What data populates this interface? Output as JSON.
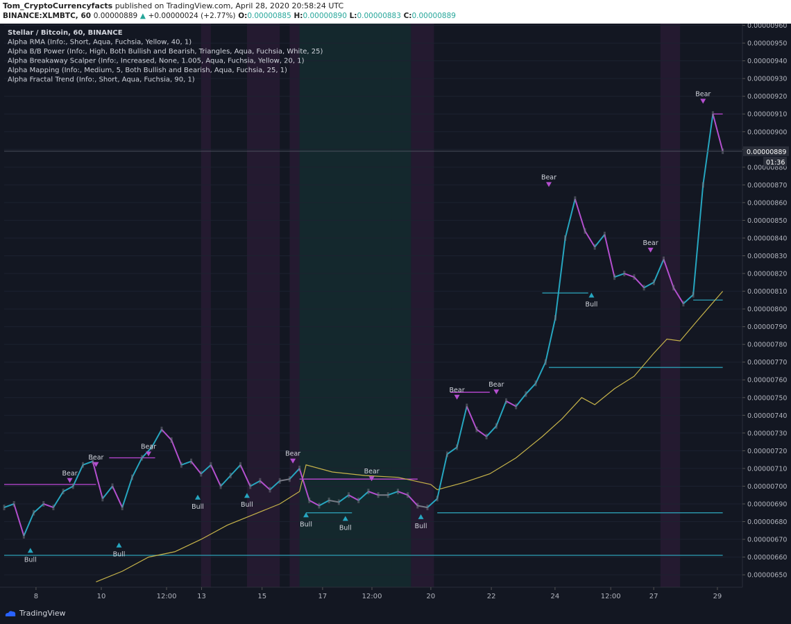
{
  "header": {
    "author": "Tom_CryptoCurrencyfacts",
    "published": " published on TradingView.com, April 28, 2020 20:58:24 UTC",
    "symbol": "BINANCE:XLMBTC, 60",
    "last": "0.00000889",
    "change": "+0.00000024 (+2.77%)",
    "o_label": "O:",
    "o": "0.00000885",
    "h_label": "H:",
    "h": "0.00000890",
    "l_label": "L:",
    "l": "0.00000883",
    "c_label": "C:",
    "c": "0.00000889"
  },
  "legend": [
    "Stellar / Bitcoin, 60, BINANCE",
    "Alpha RMA (Info:, Short, Aqua, Fuchsia, Yellow, 40, 1)",
    "Alpha B/B Power (Info:, High, Both Bullish and Bearish, Triangles, Aqua, Fuchsia, White, 25)",
    "Alpha Breakaway Scalper (Info:, Increased, None, 1.005, Aqua, Fuchsia, Yellow, 20, 1)",
    "Alpha Mapping (Info:, Medium, 5, Both Bullish and Bearish, Aqua, Fuchsia, 25, 1)",
    "Alpha Fractal Trend (Info:, Short, Aqua, Fuchsia, 90, 1)"
  ],
  "footer": {
    "brand": "TradingView"
  },
  "colors": {
    "background": "#131722",
    "teal_band": "#14282d",
    "purple_band": "#241a30",
    "bull": "#26a6c0",
    "bear": "#b44fcf",
    "neutral_candle": "#787b86",
    "trend": "#c7b44a",
    "level_teal": "#2a93a8",
    "level_purple": "#b044c8"
  },
  "chart_data": {
    "type": "line",
    "symbol": "XLMBTC",
    "x_tick_labels": [
      "8",
      "10",
      "12:00",
      "13",
      "15",
      "17",
      "12:00",
      "20",
      "22",
      "24",
      "12:00",
      "27",
      "29"
    ],
    "y_tick_labels": [
      "0.00000960",
      "0.00000950",
      "0.00000940",
      "0.00000930",
      "0.00000920",
      "0.00000910",
      "0.00000900",
      "0.00000890",
      "0.00000880",
      "0.00000870",
      "0.00000860",
      "0.00000850",
      "0.00000840",
      "0.00000830",
      "0.00000820",
      "0.00000810",
      "0.00000800",
      "0.00000790",
      "0.00000780",
      "0.00000770",
      "0.00000760",
      "0.00000750",
      "0.00000740",
      "0.00000730",
      "0.00000720",
      "0.00000710",
      "0.00000700",
      "0.00000690",
      "0.00000680",
      "0.00000670",
      "0.00000660",
      "0.00000650"
    ],
    "ylim": [
      6.43e-06,
      9.61e-06
    ],
    "xlim": [
      0,
      22.5
    ],
    "current_price_label": "0.00000889",
    "current_price": 8.89e-06,
    "countdown": "01:36",
    "price_series": {
      "x": [
        0,
        0.3,
        0.6,
        0.9,
        1.2,
        1.5,
        1.8,
        2.1,
        2.4,
        2.7,
        3.0,
        3.3,
        3.6,
        3.9,
        4.2,
        4.5,
        4.8,
        5.1,
        5.4,
        5.7,
        6.0,
        6.3,
        6.6,
        6.9,
        7.2,
        7.5,
        7.8,
        8.1,
        8.4,
        8.7,
        9.0,
        9.3,
        9.6,
        9.9,
        10.2,
        10.5,
        10.8,
        11.1,
        11.4,
        11.7,
        12.0,
        12.3,
        12.6,
        12.9,
        13.2,
        13.5,
        13.8,
        14.1,
        14.4,
        14.7,
        15.0,
        15.3,
        15.6,
        15.9,
        16.2,
        16.5,
        16.8,
        17.1,
        17.4,
        17.7,
        18.0,
        18.3,
        18.6,
        18.9,
        19.2,
        19.5,
        19.8,
        20.1,
        20.4,
        20.7,
        21.0,
        21.3,
        21.6,
        21.9
      ],
      "y": [
        6.88e-06,
        6.9e-06,
        6.72e-06,
        6.85e-06,
        6.9e-06,
        6.88e-06,
        6.97e-06,
        7e-06,
        7.12e-06,
        7.14e-06,
        6.93e-06,
        7e-06,
        6.88e-06,
        7.05e-06,
        7.16e-06,
        7.22e-06,
        7.32e-06,
        7.26e-06,
        7.12e-06,
        7.14e-06,
        7.07e-06,
        7.12e-06,
        7e-06,
        7.06e-06,
        7.12e-06,
        7e-06,
        7.03e-06,
        6.98e-06,
        7.03e-06,
        7.04e-06,
        7.1e-06,
        6.92e-06,
        6.89e-06,
        6.92e-06,
        6.91e-06,
        6.95e-06,
        6.92e-06,
        6.97e-06,
        6.95e-06,
        6.95e-06,
        6.97e-06,
        6.95e-06,
        6.89e-06,
        6.88e-06,
        6.93e-06,
        7.18e-06,
        7.22e-06,
        7.45e-06,
        7.32e-06,
        7.28e-06,
        7.34e-06,
        7.48e-06,
        7.45e-06,
        7.52e-06,
        7.58e-06,
        7.7e-06,
        7.95e-06,
        8.4e-06,
        8.62e-06,
        8.44e-06,
        8.35e-06,
        8.42e-06,
        8.18e-06,
        8.2e-06,
        8.18e-06,
        8.12e-06,
        8.15e-06,
        8.28e-06,
        8.12e-06,
        8.03e-06,
        8.08e-06,
        8.7e-06,
        9.1e-06,
        8.89e-06
      ]
    },
    "trend_series": {
      "x": [
        2.8,
        3.6,
        4.4,
        5.2,
        6.0,
        6.8,
        7.6,
        8.4,
        9.0,
        9.2,
        10.0,
        11.0,
        12.0,
        13.0,
        13.2,
        14.0,
        14.8,
        15.6,
        16.4,
        17.0,
        17.6,
        18.0,
        18.6,
        19.2,
        19.8,
        20.2,
        20.6,
        21.2,
        21.9
      ],
      "y": [
        6.46e-06,
        6.52e-06,
        6.6e-06,
        6.63e-06,
        6.7e-06,
        6.78e-06,
        6.84e-06,
        6.9e-06,
        6.97e-06,
        7.12e-06,
        7.08e-06,
        7.06e-06,
        7.05e-06,
        7.01e-06,
        6.98e-06,
        7.02e-06,
        7.07e-06,
        7.16e-06,
        7.28e-06,
        7.38e-06,
        7.5e-06,
        7.46e-06,
        7.55e-06,
        7.62e-06,
        7.75e-06,
        7.83e-06,
        7.82e-06,
        7.95e-06,
        8.1e-06
      ]
    },
    "levels": [
      {
        "y": 7.01e-06,
        "x0": 0.0,
        "x1": 2.8,
        "color": "purple"
      },
      {
        "y": 7.16e-06,
        "x0": 3.2,
        "x1": 4.6,
        "color": "purple"
      },
      {
        "y": 6.61e-06,
        "x0": 0.0,
        "x1": 21.9,
        "color": "teal"
      },
      {
        "y": 6.85e-06,
        "x0": 9.2,
        "x1": 10.6,
        "color": "teal"
      },
      {
        "y": 7.04e-06,
        "x0": 9.0,
        "x1": 12.6,
        "color": "purple"
      },
      {
        "y": 7.53e-06,
        "x0": 13.6,
        "x1": 14.8,
        "color": "purple"
      },
      {
        "y": 6.85e-06,
        "x0": 13.2,
        "x1": 21.9,
        "color": "teal"
      },
      {
        "y": 8.09e-06,
        "x0": 16.4,
        "x1": 17.8,
        "color": "teal"
      },
      {
        "y": 7.67e-06,
        "x0": 16.6,
        "x1": 21.9,
        "color": "teal"
      },
      {
        "y": 8.05e-06,
        "x0": 21.0,
        "x1": 21.9,
        "color": "teal"
      },
      {
        "y": 9.1e-06,
        "x0": 21.6,
        "x1": 21.9,
        "color": "purple"
      }
    ],
    "bands": [
      {
        "x0": 6.0,
        "x1": 6.3,
        "kind": "purple"
      },
      {
        "x0": 7.4,
        "x1": 8.4,
        "kind": "purple"
      },
      {
        "x0": 8.7,
        "x1": 9.0,
        "kind": "purple"
      },
      {
        "x0": 9.0,
        "x1": 11.8,
        "kind": "teal"
      },
      {
        "x0": 11.8,
        "x1": 12.4,
        "kind": "teal"
      },
      {
        "x0": 12.4,
        "x1": 13.1,
        "kind": "purple"
      },
      {
        "x0": 20.0,
        "x1": 20.6,
        "kind": "purple"
      }
    ],
    "signals": [
      {
        "type": "Bull",
        "x": 0.8,
        "y": 6.64e-06
      },
      {
        "type": "Bull",
        "x": 3.5,
        "y": 6.67e-06
      },
      {
        "type": "Bull",
        "x": 5.9,
        "y": 6.94e-06
      },
      {
        "type": "Bull",
        "x": 7.4,
        "y": 6.95e-06
      },
      {
        "type": "Bull",
        "x": 9.2,
        "y": 6.84e-06
      },
      {
        "type": "Bull",
        "x": 10.4,
        "y": 6.82e-06
      },
      {
        "type": "Bull",
        "x": 12.7,
        "y": 6.83e-06
      },
      {
        "type": "Bull",
        "x": 17.9,
        "y": 8.08e-06
      },
      {
        "type": "Bear",
        "x": 2.0,
        "y": 7.03e-06
      },
      {
        "type": "Bear",
        "x": 2.8,
        "y": 7.12e-06
      },
      {
        "type": "Bear",
        "x": 4.4,
        "y": 7.18e-06
      },
      {
        "type": "Bear",
        "x": 8.8,
        "y": 7.14e-06
      },
      {
        "type": "Bear",
        "x": 11.2,
        "y": 7.04e-06
      },
      {
        "type": "Bear",
        "x": 13.8,
        "y": 7.5e-06
      },
      {
        "type": "Bear",
        "x": 15.0,
        "y": 7.53e-06
      },
      {
        "type": "Bear",
        "x": 16.6,
        "y": 8.7e-06
      },
      {
        "type": "Bear",
        "x": 19.7,
        "y": 8.33e-06
      },
      {
        "type": "Bear",
        "x": 21.3,
        "y": 9.17e-06
      }
    ]
  }
}
